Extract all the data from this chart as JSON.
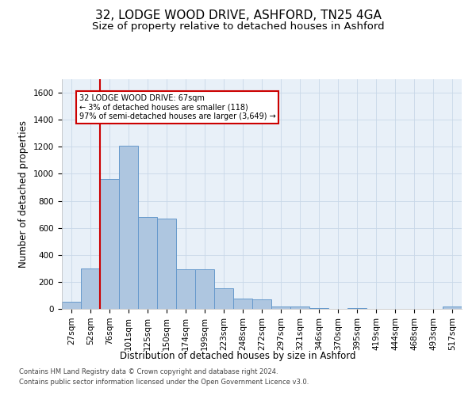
{
  "title": "32, LODGE WOOD DRIVE, ASHFORD, TN25 4GA",
  "subtitle": "Size of property relative to detached houses in Ashford",
  "xlabel": "Distribution of detached houses by size in Ashford",
  "ylabel": "Number of detached properties",
  "footnote1": "Contains HM Land Registry data © Crown copyright and database right 2024.",
  "footnote2": "Contains public sector information licensed under the Open Government Licence v3.0.",
  "bar_labels": [
    "27sqm",
    "52sqm",
    "76sqm",
    "101sqm",
    "125sqm",
    "150sqm",
    "174sqm",
    "199sqm",
    "223sqm",
    "248sqm",
    "272sqm",
    "297sqm",
    "321sqm",
    "346sqm",
    "370sqm",
    "395sqm",
    "419sqm",
    "444sqm",
    "468sqm",
    "493sqm",
    "517sqm"
  ],
  "bar_values": [
    50,
    300,
    960,
    1210,
    680,
    670,
    295,
    295,
    155,
    75,
    70,
    20,
    15,
    5,
    0,
    5,
    0,
    0,
    0,
    0,
    15
  ],
  "bar_color": "#aec6e0",
  "bar_edge_color": "#6699cc",
  "vline_x_idx": 1.5,
  "annotation_text": "32 LODGE WOOD DRIVE: 67sqm\n← 3% of detached houses are smaller (118)\n97% of semi-detached houses are larger (3,649) →",
  "annotation_box_color": "#ffffff",
  "annotation_box_edge": "#cc0000",
  "vline_color": "#cc0000",
  "ylim": [
    0,
    1700
  ],
  "yticks": [
    0,
    200,
    400,
    600,
    800,
    1000,
    1200,
    1400,
    1600
  ],
  "grid_color": "#c8d8e8",
  "bg_color": "#e8f0f8",
  "title_fontsize": 11,
  "subtitle_fontsize": 9.5,
  "axis_label_fontsize": 8.5,
  "tick_fontsize": 7.5
}
